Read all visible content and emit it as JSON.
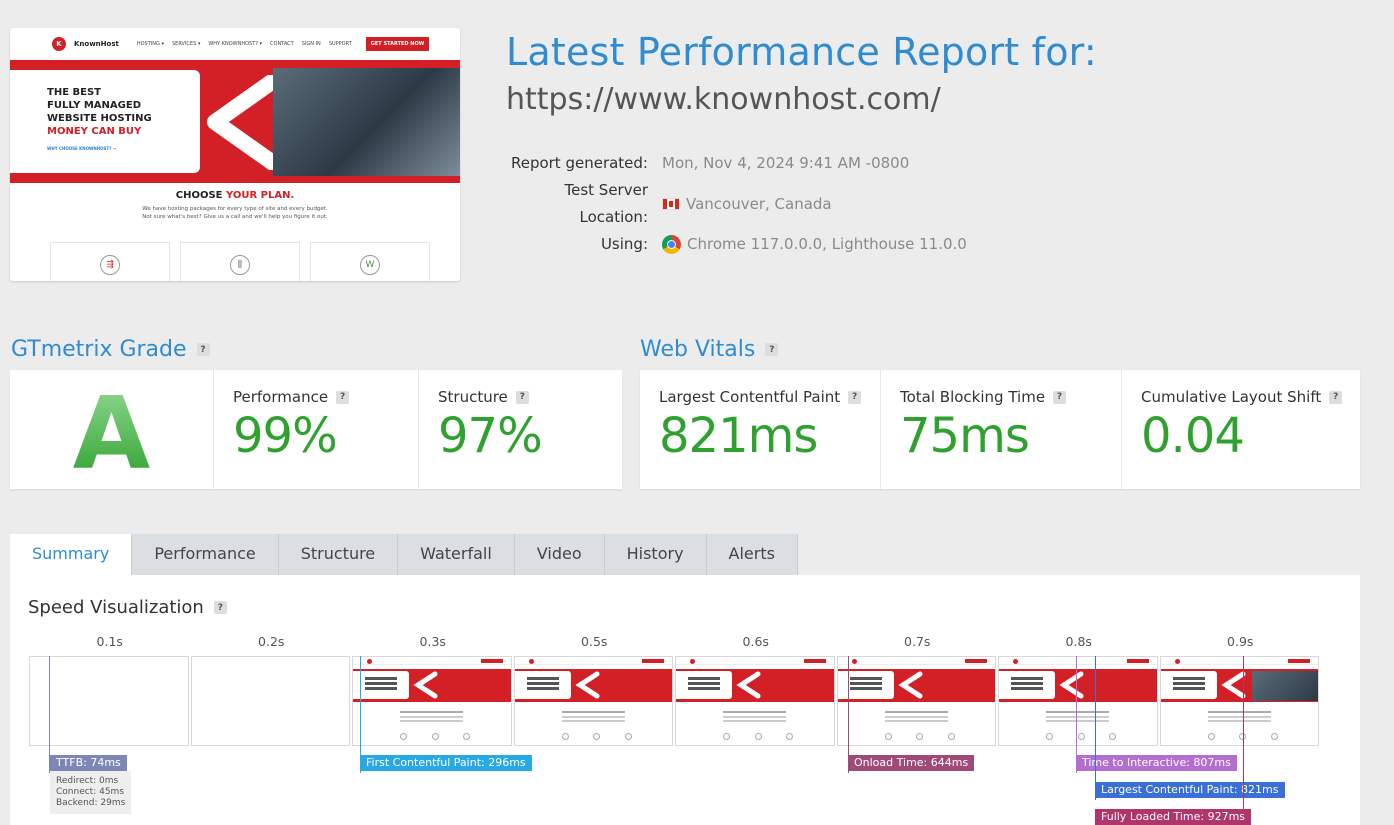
{
  "preview": {
    "brand": "KnownHost",
    "nav": [
      "HOSTING ▾",
      "SERVICES ▾",
      "WHY KNOWNHOST? ▾",
      "CONTACT",
      "SIGN IN",
      "SUPPORT"
    ],
    "cta": "GET STARTED NOW",
    "hero_lines": [
      "THE BEST",
      "FULLY MANAGED",
      "WEBSITE HOSTING"
    ],
    "hero_red_line": "MONEY CAN BUY",
    "hero_link": "WHY CHOOSE KNOWNHOST? →",
    "plan_title_a": "CHOOSE ",
    "plan_title_b": "YOUR PLAN.",
    "plan_sub1": "We have hosting packages for every type of site and every budget.",
    "plan_sub2": "Not sure what's best? Give us a call and we'll help you figure it out."
  },
  "header": {
    "title": "Latest Performance Report for:",
    "url": "https://www.knownhost.com/",
    "report_label": "Report generated:",
    "report_value": "Mon, Nov 4, 2024 9:41 AM -0800",
    "location_label": "Test Server Location:",
    "location_value": "Vancouver, Canada",
    "using_label": "Using:",
    "using_value": "Chrome 117.0.0.0, Lighthouse 11.0.0"
  },
  "grade": {
    "heading": "GTmetrix Grade",
    "letter": "A",
    "performance_label": "Performance",
    "performance_value": "99%",
    "structure_label": "Structure",
    "structure_value": "97%"
  },
  "vitals": {
    "heading": "Web Vitals",
    "lcp_label": "Largest Contentful Paint",
    "lcp_value": "821ms",
    "tbt_label": "Total Blocking Time",
    "tbt_value": "75ms",
    "cls_label": "Cumulative Layout Shift",
    "cls_value": "0.04"
  },
  "tabs": [
    "Summary",
    "Performance",
    "Structure",
    "Waterfall",
    "Video",
    "History",
    "Alerts"
  ],
  "speed": {
    "title": "Speed Visualization",
    "times": [
      "0.1s",
      "0.2s",
      "0.3s",
      "0.5s",
      "0.6s",
      "0.7s",
      "0.8s",
      "0.9s"
    ],
    "ttfb": "TTFB: 74ms",
    "redirect": "Redirect: 0ms",
    "connect": "Connect: 45ms",
    "backend": "Backend: 29ms",
    "fcp": "First Contentful Paint: 296ms",
    "onload": "Onload Time: 644ms",
    "tti": "Time to Interactive: 807ms",
    "lcp": "Largest Contentful Paint: 821ms",
    "fully_loaded": "Fully Loaded Time: 927ms"
  },
  "colors": {
    "accent": "#2e8bd4",
    "good": "#2fa12f",
    "ttfb": "#7e86b6",
    "fcp": "#28a9e6",
    "onload": "#a04a7a",
    "tti": "#b36fd0",
    "lcp": "#3a6fd8",
    "fully": "#b0356a"
  }
}
